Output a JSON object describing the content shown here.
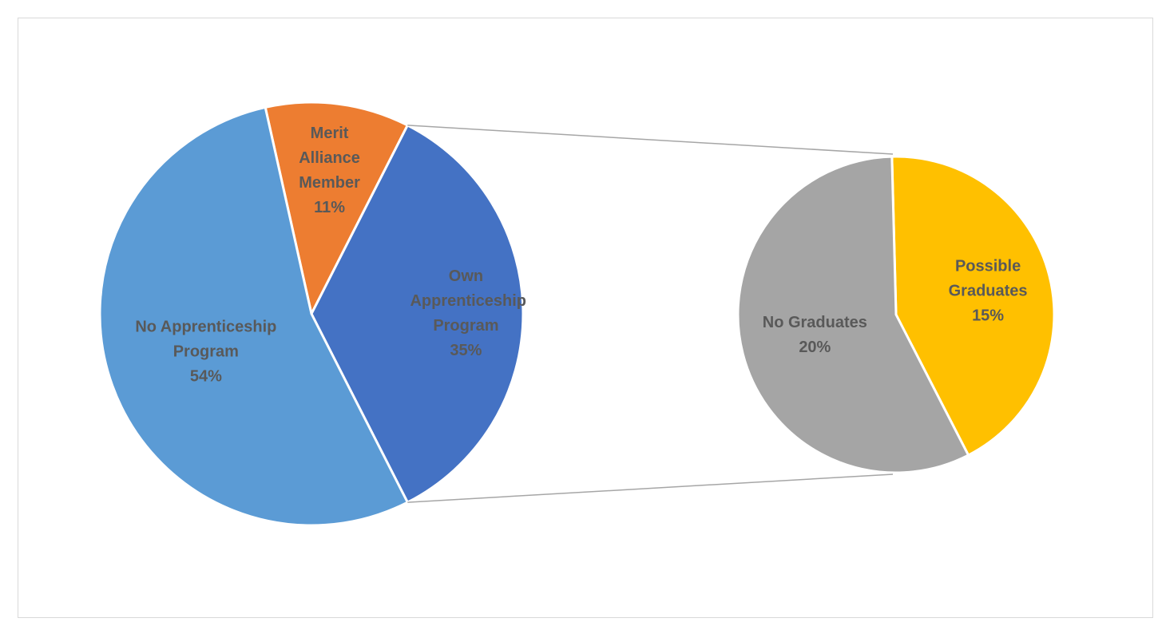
{
  "chart_data": [
    {
      "type": "pie",
      "categories": [
        "Merit Alliance Member",
        "Own Apprenticeship Program",
        "No Apprenticeship Program"
      ],
      "values": [
        11,
        35,
        54
      ],
      "value_labels": [
        "11%",
        "35%",
        "54%"
      ],
      "colors": [
        "#ED7D31",
        "#4472C4",
        "#5B9BD5"
      ]
    },
    {
      "type": "pie",
      "categories": [
        "Possible Graduates",
        "No Graduates"
      ],
      "values": [
        15,
        20
      ],
      "value_labels": [
        "15%",
        "20%"
      ],
      "colors": [
        "#FFC000",
        "#A5A5A5"
      ]
    }
  ]
}
